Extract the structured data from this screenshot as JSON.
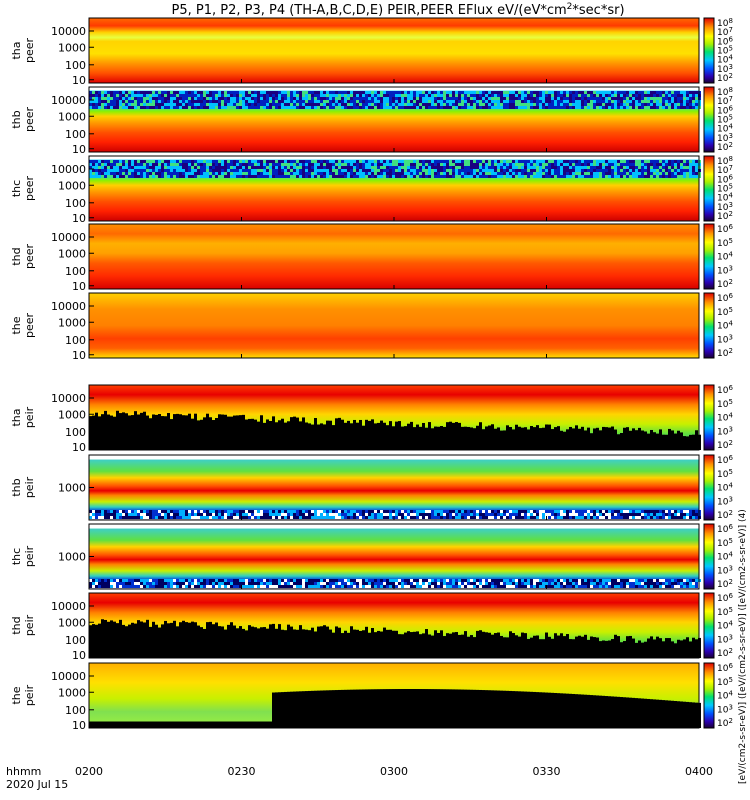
{
  "chart_data": {
    "type": "heatmap",
    "title_main": "P5, P1, P2, P3, P4 (TH-A,B,C,D,E) PEIR,PEER EFlux eV/(eV*cm",
    "title_sup": "2",
    "title_tail": "*sec*sr)",
    "x_ticks": [
      "0200",
      "0230",
      "0300",
      "0330",
      "0400"
    ],
    "x_label_line1": "hhmm",
    "x_label_line2": "2020 Jul 15",
    "colorbar_label": "[eV/(cm2-s-sr-eV)] ([eV/(cm2-s-sr-eV)] ([eV/(cm2-s-sr-eV)] (4)",
    "panels": [
      {
        "label1": "tha",
        "label2": "peer",
        "yticks": [
          "10000",
          "1000",
          "100",
          "10"
        ],
        "cbar_ticks": [
          "10",
          "10",
          "10",
          "10",
          "10",
          "10",
          "10"
        ],
        "cbar_exps": [
          "8",
          "7",
          "6",
          "5",
          "4",
          "3",
          "2"
        ],
        "background": "electron_a"
      },
      {
        "label1": "thb",
        "label2": "peer",
        "yticks": [
          "10000",
          "1000",
          "100",
          "10"
        ],
        "cbar_ticks": [
          "10",
          "10",
          "10",
          "10",
          "10",
          "10",
          "10"
        ],
        "cbar_exps": [
          "8",
          "7",
          "6",
          "5",
          "4",
          "3",
          "2"
        ],
        "background": "electron_noisy"
      },
      {
        "label1": "thc",
        "label2": "peer",
        "yticks": [
          "10000",
          "1000",
          "100",
          "10"
        ],
        "cbar_ticks": [
          "10",
          "10",
          "10",
          "10",
          "10",
          "10",
          "10"
        ],
        "cbar_exps": [
          "8",
          "7",
          "6",
          "5",
          "4",
          "3",
          "2"
        ],
        "background": "electron_noisy"
      },
      {
        "label1": "thd",
        "label2": "peer",
        "yticks": [
          "10000",
          "1000",
          "100",
          "10"
        ],
        "cbar_ticks": [
          "10",
          "10",
          "10",
          "10",
          "10"
        ],
        "cbar_exps": [
          "6",
          "5",
          "4",
          "3",
          "2"
        ],
        "background": "electron_d"
      },
      {
        "label1": "the",
        "label2": "peer",
        "yticks": [
          "10000",
          "1000",
          "100",
          "10"
        ],
        "cbar_ticks": [
          "10",
          "10",
          "10",
          "10",
          "10"
        ],
        "cbar_exps": [
          "6",
          "5",
          "4",
          "3",
          "2"
        ],
        "background": "electron_e"
      },
      {
        "label1": "tha",
        "label2": "peir",
        "yticks": [
          "10000",
          "1000",
          "100",
          "10"
        ],
        "cbar_ticks": [
          "10",
          "10",
          "10",
          "10",
          "10"
        ],
        "cbar_exps": [
          "6",
          "5",
          "4",
          "3",
          "2"
        ],
        "background": "ion_full"
      },
      {
        "label1": "thb",
        "label2": "peir",
        "yticks": [
          "1000"
        ],
        "cbar_ticks": [
          "10",
          "10",
          "10",
          "10",
          "10"
        ],
        "cbar_exps": [
          "6",
          "5",
          "4",
          "3",
          "2"
        ],
        "background": "ion_band"
      },
      {
        "label1": "thc",
        "label2": "peir",
        "yticks": [
          "1000"
        ],
        "cbar_ticks": [
          "10",
          "10",
          "10",
          "10",
          "10"
        ],
        "cbar_exps": [
          "6",
          "5",
          "4",
          "3",
          "2"
        ],
        "background": "ion_band"
      },
      {
        "label1": "thd",
        "label2": "peir",
        "yticks": [
          "10000",
          "1000",
          "100",
          "10"
        ],
        "cbar_ticks": [
          "10",
          "10",
          "10",
          "10",
          "10"
        ],
        "cbar_exps": [
          "6",
          "5",
          "4",
          "3",
          "2"
        ],
        "background": "ion_full"
      },
      {
        "label1": "the",
        "label2": "peir",
        "yticks": [
          "10000",
          "1000",
          "100",
          "10"
        ],
        "cbar_ticks": [
          "10",
          "10",
          "10",
          "10",
          "10"
        ],
        "cbar_exps": [
          "6",
          "5",
          "4",
          "3",
          "2"
        ],
        "background": "ion_e"
      }
    ]
  }
}
